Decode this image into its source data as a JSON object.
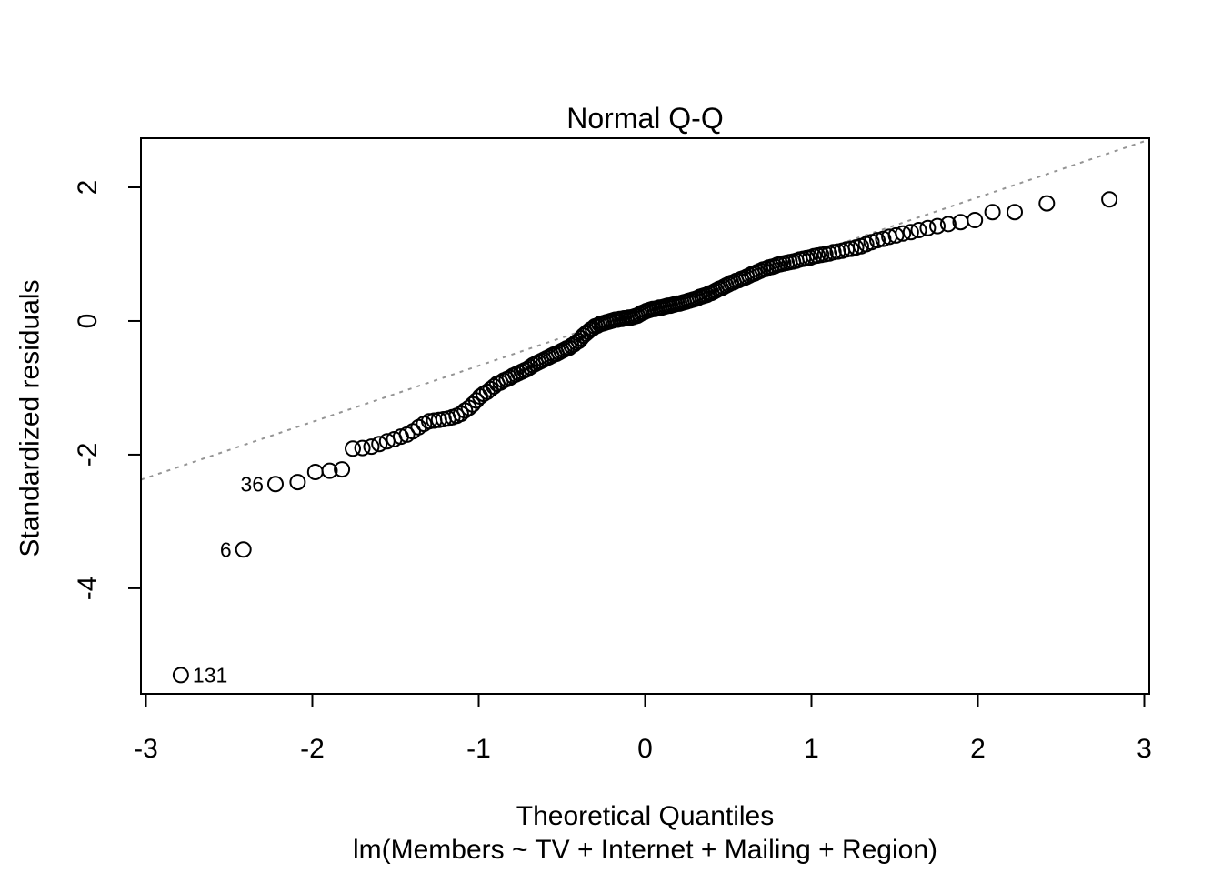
{
  "chart_data": {
    "type": "scatter",
    "title": "Normal Q-Q",
    "xlabel": "Theoretical Quantiles",
    "sublabel": "lm(Members ~ TV + Internet + Mailing + Region)",
    "ylabel": "Standardized residuals",
    "x_ticks": [
      -3,
      -2,
      -1,
      0,
      1,
      2,
      3
    ],
    "y_ticks": [
      2,
      0,
      -2,
      -4
    ],
    "xlim": [
      -3.03,
      3.03
    ],
    "ylim": [
      -5.58,
      2.735
    ],
    "grid": false,
    "marker": {
      "shape": "open-circle",
      "radius": 8,
      "stroke_width": 2,
      "color": "#000000"
    },
    "ref_line": {
      "style": "dotted",
      "color": "#949494",
      "slope": 0.84,
      "intercept": 0.17
    },
    "labeled_points": [
      {
        "label": "131",
        "q": -2.79,
        "v": -5.3,
        "side": "right"
      },
      {
        "label": "6",
        "q": -2.414,
        "v": -3.42,
        "side": "left"
      },
      {
        "label": "36",
        "q": -2.221,
        "v": -2.44,
        "side": "left"
      }
    ],
    "points": [
      [
        -2.79,
        -5.3
      ],
      [
        -2.414,
        -3.42
      ],
      [
        -2.221,
        -2.44
      ],
      [
        -2.088,
        -2.41
      ],
      [
        -1.982,
        -2.26
      ],
      [
        -1.896,
        -2.24
      ],
      [
        -1.822,
        -2.22
      ],
      [
        -1.757,
        -1.91
      ],
      [
        -1.699,
        -1.9
      ],
      [
        -1.645,
        -1.88
      ],
      [
        -1.597,
        -1.84
      ],
      [
        -1.55,
        -1.8
      ],
      [
        -1.508,
        -1.77
      ],
      [
        -1.468,
        -1.73
      ],
      [
        -1.431,
        -1.7
      ],
      [
        -1.396,
        -1.65
      ],
      [
        -1.361,
        -1.59
      ],
      [
        -1.329,
        -1.54
      ],
      [
        -1.298,
        -1.5
      ],
      [
        -1.268,
        -1.49
      ],
      [
        -1.239,
        -1.48
      ],
      [
        -1.211,
        -1.47
      ],
      [
        -1.184,
        -1.46
      ],
      [
        -1.158,
        -1.44
      ],
      [
        -1.132,
        -1.42
      ],
      [
        -1.107,
        -1.39
      ],
      [
        -1.083,
        -1.34
      ],
      [
        -1.059,
        -1.3
      ],
      [
        -1.036,
        -1.25
      ],
      [
        -1.014,
        -1.19
      ],
      [
        -0.992,
        -1.13
      ],
      [
        -0.97,
        -1.09
      ],
      [
        -0.949,
        -1.06
      ],
      [
        -0.929,
        -1.02
      ],
      [
        -0.908,
        -0.98
      ],
      [
        -0.889,
        -0.94
      ],
      [
        -0.869,
        -0.92
      ],
      [
        -0.85,
        -0.89
      ],
      [
        -0.831,
        -0.87
      ],
      [
        -0.813,
        -0.85
      ],
      [
        -0.795,
        -0.82
      ],
      [
        -0.777,
        -0.8
      ],
      [
        -0.76,
        -0.78
      ],
      [
        -0.742,
        -0.76
      ],
      [
        -0.725,
        -0.74
      ],
      [
        -0.708,
        -0.72
      ],
      [
        -0.691,
        -0.69
      ],
      [
        -0.674,
        -0.66
      ],
      [
        -0.658,
        -0.64
      ],
      [
        -0.642,
        -0.62
      ],
      [
        -0.626,
        -0.6
      ],
      [
        -0.61,
        -0.58
      ],
      [
        -0.594,
        -0.56
      ],
      [
        -0.578,
        -0.54
      ],
      [
        -0.563,
        -0.52
      ],
      [
        -0.547,
        -0.5
      ],
      [
        -0.532,
        -0.49
      ],
      [
        -0.517,
        -0.47
      ],
      [
        -0.502,
        -0.45
      ],
      [
        -0.487,
        -0.43
      ],
      [
        -0.472,
        -0.41
      ],
      [
        -0.457,
        -0.4
      ],
      [
        -0.443,
        -0.37
      ],
      [
        -0.428,
        -0.35
      ],
      [
        -0.414,
        -0.32
      ],
      [
        -0.399,
        -0.3
      ],
      [
        -0.385,
        -0.26
      ],
      [
        -0.371,
        -0.22
      ],
      [
        -0.357,
        -0.19
      ],
      [
        -0.343,
        -0.16
      ],
      [
        -0.329,
        -0.13
      ],
      [
        -0.315,
        -0.11
      ],
      [
        -0.301,
        -0.08
      ],
      [
        -0.287,
        -0.07
      ],
      [
        -0.274,
        -0.05
      ],
      [
        -0.26,
        -0.04
      ],
      [
        -0.247,
        -0.03
      ],
      [
        -0.233,
        -0.02
      ],
      [
        -0.219,
        -0.01
      ],
      [
        -0.206,
        0.0
      ],
      [
        -0.192,
        0.01
      ],
      [
        -0.179,
        0.02
      ],
      [
        -0.166,
        0.02
      ],
      [
        -0.152,
        0.03
      ],
      [
        -0.139,
        0.03
      ],
      [
        -0.126,
        0.04
      ],
      [
        -0.112,
        0.04
      ],
      [
        -0.099,
        0.05
      ],
      [
        -0.086,
        0.05
      ],
      [
        -0.073,
        0.06
      ],
      [
        -0.059,
        0.07
      ],
      [
        -0.046,
        0.08
      ],
      [
        -0.033,
        0.1
      ],
      [
        -0.02,
        0.12
      ],
      [
        -0.007,
        0.13
      ],
      [
        0.007,
        0.15
      ],
      [
        0.02,
        0.16
      ],
      [
        0.033,
        0.17
      ],
      [
        0.046,
        0.18
      ],
      [
        0.059,
        0.18
      ],
      [
        0.073,
        0.19
      ],
      [
        0.086,
        0.2
      ],
      [
        0.099,
        0.2
      ],
      [
        0.112,
        0.21
      ],
      [
        0.126,
        0.22
      ],
      [
        0.139,
        0.23
      ],
      [
        0.152,
        0.23
      ],
      [
        0.166,
        0.24
      ],
      [
        0.179,
        0.25
      ],
      [
        0.192,
        0.26
      ],
      [
        0.206,
        0.26
      ],
      [
        0.219,
        0.27
      ],
      [
        0.233,
        0.28
      ],
      [
        0.247,
        0.29
      ],
      [
        0.26,
        0.3
      ],
      [
        0.274,
        0.31
      ],
      [
        0.287,
        0.32
      ],
      [
        0.301,
        0.33
      ],
      [
        0.315,
        0.34
      ],
      [
        0.329,
        0.36
      ],
      [
        0.343,
        0.37
      ],
      [
        0.357,
        0.38
      ],
      [
        0.371,
        0.39
      ],
      [
        0.385,
        0.41
      ],
      [
        0.399,
        0.42
      ],
      [
        0.414,
        0.44
      ],
      [
        0.428,
        0.46
      ],
      [
        0.443,
        0.48
      ],
      [
        0.457,
        0.49
      ],
      [
        0.472,
        0.51
      ],
      [
        0.487,
        0.53
      ],
      [
        0.502,
        0.55
      ],
      [
        0.517,
        0.57
      ],
      [
        0.532,
        0.58
      ],
      [
        0.547,
        0.6
      ],
      [
        0.563,
        0.61
      ],
      [
        0.578,
        0.63
      ],
      [
        0.594,
        0.64
      ],
      [
        0.61,
        0.66
      ],
      [
        0.626,
        0.68
      ],
      [
        0.642,
        0.7
      ],
      [
        0.658,
        0.71
      ],
      [
        0.674,
        0.73
      ],
      [
        0.691,
        0.75
      ],
      [
        0.708,
        0.77
      ],
      [
        0.725,
        0.78
      ],
      [
        0.742,
        0.8
      ],
      [
        0.76,
        0.81
      ],
      [
        0.777,
        0.82
      ],
      [
        0.795,
        0.84
      ],
      [
        0.813,
        0.85
      ],
      [
        0.831,
        0.86
      ],
      [
        0.85,
        0.87
      ],
      [
        0.869,
        0.88
      ],
      [
        0.889,
        0.89
      ],
      [
        0.908,
        0.9
      ],
      [
        0.929,
        0.92
      ],
      [
        0.949,
        0.93
      ],
      [
        0.97,
        0.94
      ],
      [
        0.992,
        0.95
      ],
      [
        1.014,
        0.97
      ],
      [
        1.036,
        0.98
      ],
      [
        1.059,
        0.99
      ],
      [
        1.083,
        1.0
      ],
      [
        1.107,
        1.01
      ],
      [
        1.132,
        1.03
      ],
      [
        1.158,
        1.04
      ],
      [
        1.184,
        1.05
      ],
      [
        1.211,
        1.07
      ],
      [
        1.239,
        1.08
      ],
      [
        1.268,
        1.1
      ],
      [
        1.298,
        1.12
      ],
      [
        1.329,
        1.15
      ],
      [
        1.361,
        1.18
      ],
      [
        1.396,
        1.21
      ],
      [
        1.431,
        1.23
      ],
      [
        1.468,
        1.26
      ],
      [
        1.508,
        1.28
      ],
      [
        1.55,
        1.31
      ],
      [
        1.597,
        1.33
      ],
      [
        1.645,
        1.36
      ],
      [
        1.699,
        1.39
      ],
      [
        1.757,
        1.42
      ],
      [
        1.822,
        1.45
      ],
      [
        1.896,
        1.48
      ],
      [
        1.982,
        1.51
      ],
      [
        2.088,
        1.63
      ],
      [
        2.221,
        1.63
      ],
      [
        2.414,
        1.76
      ],
      [
        2.79,
        1.82
      ]
    ]
  }
}
